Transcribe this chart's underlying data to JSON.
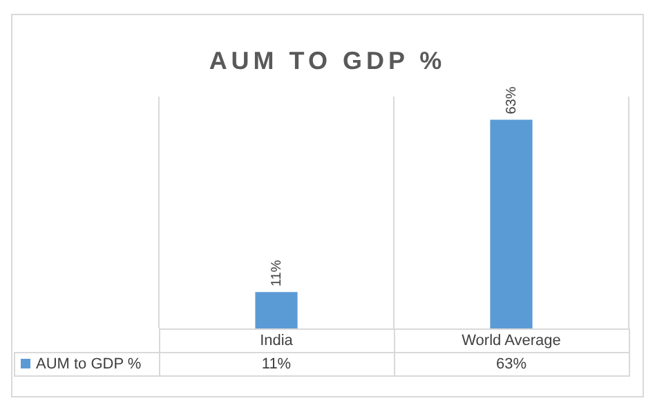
{
  "chart_data": {
    "type": "bar",
    "title": "AUM TO GDP %",
    "categories": [
      "India",
      "World Average"
    ],
    "series": [
      {
        "name": "AUM to GDP %",
        "color": "#5b9bd5",
        "values": [
          11,
          63
        ],
        "value_labels": [
          "11%",
          "63%"
        ]
      }
    ],
    "legend": "bottom",
    "grid": "x"
  }
}
